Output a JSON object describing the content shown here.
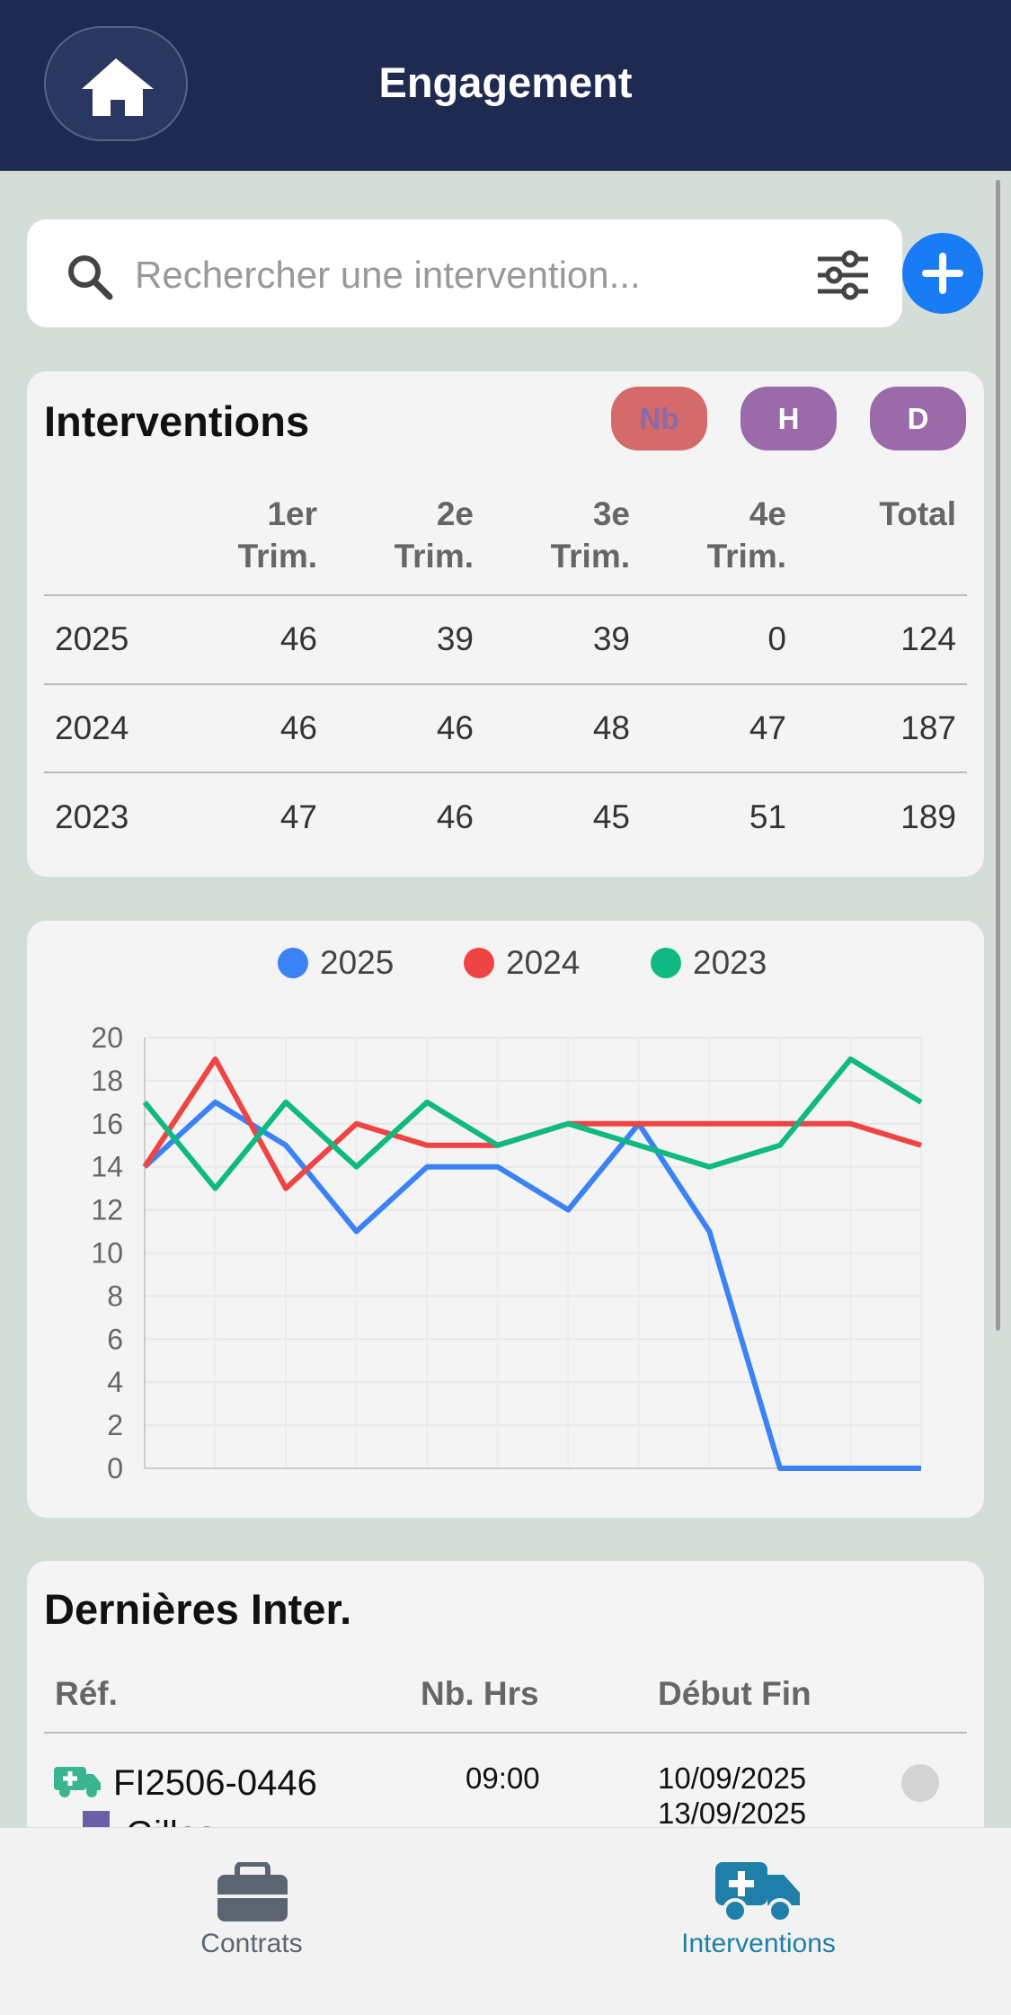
{
  "header": {
    "title": "Engagement"
  },
  "search": {
    "placeholder": "Rechercher une intervention..."
  },
  "interventions": {
    "title": "Interventions",
    "toggles": [
      "Nb",
      "H",
      "D"
    ],
    "columns": [
      "1er Trim.",
      "2e Trim.",
      "3e Trim.",
      "4e Trim.",
      "Total"
    ],
    "rows": [
      [
        "2025",
        46,
        39,
        39,
        0,
        124
      ],
      [
        "2024",
        46,
        46,
        48,
        47,
        187
      ],
      [
        "2023",
        47,
        46,
        45,
        51,
        189
      ]
    ]
  },
  "chart_data": {
    "type": "line",
    "categories": [
      null,
      null,
      null,
      null,
      null,
      null,
      null,
      null,
      null,
      null,
      null,
      null
    ],
    "series": [
      {
        "name": "2025",
        "color": "#3b82f6",
        "values": [
          14,
          17,
          15,
          11,
          14,
          14,
          12,
          16,
          11,
          0,
          0,
          0
        ]
      },
      {
        "name": "2024",
        "color": "#ef4444",
        "values": [
          14,
          19,
          13,
          16,
          15,
          15,
          16,
          16,
          16,
          16,
          16,
          15
        ]
      },
      {
        "name": "2023",
        "color": "#10b981",
        "values": [
          17,
          13,
          17,
          14,
          17,
          15,
          16,
          15,
          14,
          15,
          19,
          17
        ]
      }
    ],
    "ylim": [
      0,
      20
    ],
    "yticks": [
      0,
      2,
      4,
      6,
      8,
      10,
      12,
      14,
      16,
      18,
      20
    ],
    "grid": true,
    "legend": "top"
  },
  "recent": {
    "title": "Dernières Inter.",
    "columns": [
      "Réf.",
      "Nb. Hrs",
      "Début Fin"
    ],
    "rows": [
      {
        "ref": "FI2506-0446",
        "hours": "09:00",
        "start": "10/09/2025",
        "end": "13/09/2025",
        "client": "Gilles"
      }
    ]
  },
  "nav": {
    "items": [
      "Contrats",
      "Interventions"
    ]
  }
}
